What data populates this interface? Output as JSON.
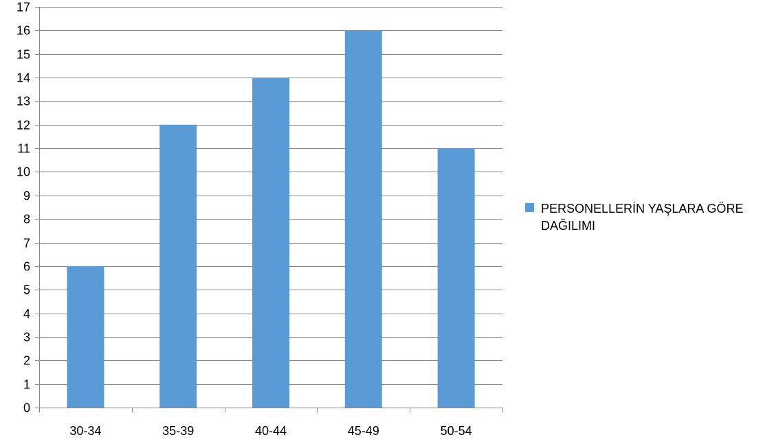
{
  "chart_data": {
    "type": "bar",
    "categories": [
      "30-34",
      "35-39",
      "40-44",
      "45-49",
      "50-54"
    ],
    "series": [
      {
        "name": "PERSONELLERİN YAŞLARA GÖRE DAĞILIMI",
        "values": [
          6,
          12,
          14,
          16,
          11
        ],
        "color": "#5b9bd5"
      }
    ],
    "title": "",
    "xlabel": "",
    "ylabel": "",
    "ylim": [
      0,
      17
    ],
    "yticks": [
      "0",
      "1",
      "2",
      "3",
      "4",
      "5",
      "6",
      "7",
      "8",
      "9",
      "10",
      "11",
      "12",
      "13",
      "14",
      "15",
      "16",
      "17"
    ],
    "grid": true,
    "legend_position": "right",
    "colors": {
      "bar": "#5b9bd5",
      "grid": "#868686",
      "axis": "#868686",
      "text": "#000000"
    }
  }
}
